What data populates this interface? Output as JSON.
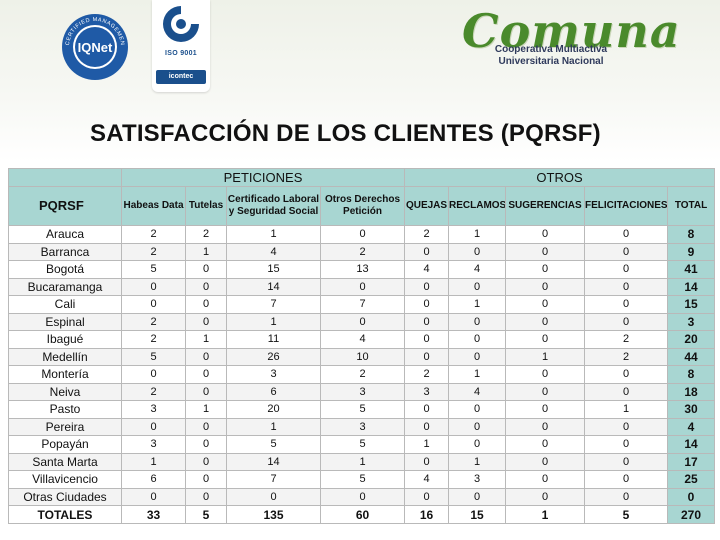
{
  "header": {
    "iqnet_label": "IQNet",
    "iqnet_ring": "CERTIFIED MANAGEMENT SYSTEM",
    "icontec_iso": "ISO 9001",
    "icontec_name": "icontec",
    "brand": "Comuna",
    "brand_sub_1": "Cooperativa Multiactiva",
    "brand_sub_2": "Universitaria Nacional"
  },
  "title": "SATISFACCIÓN DE LOS CLIENTES (PQRSF)",
  "table": {
    "group_peticiones": "PETICIONES",
    "group_otros": "OTROS",
    "columns": [
      "PQRSF",
      "Habeas Data",
      "Tutelas",
      "Certificado Laboral y Seguridad Social",
      "Otros Derechos Petición",
      "QUEJAS",
      "RECLAMOS",
      "SUGERENCIAS",
      "FELICITACIONES",
      "TOTAL"
    ],
    "rows": [
      [
        "Arauca",
        "2",
        "2",
        "1",
        "0",
        "2",
        "1",
        "0",
        "0",
        "8"
      ],
      [
        "Barranca",
        "2",
        "1",
        "4",
        "2",
        "0",
        "0",
        "0",
        "0",
        "9"
      ],
      [
        "Bogotá",
        "5",
        "0",
        "15",
        "13",
        "4",
        "4",
        "0",
        "0",
        "41"
      ],
      [
        "Bucaramanga",
        "0",
        "0",
        "14",
        "0",
        "0",
        "0",
        "0",
        "0",
        "14"
      ],
      [
        "Cali",
        "0",
        "0",
        "7",
        "7",
        "0",
        "1",
        "0",
        "0",
        "15"
      ],
      [
        "Espinal",
        "2",
        "0",
        "1",
        "0",
        "0",
        "0",
        "0",
        "0",
        "3"
      ],
      [
        "Ibagué",
        "2",
        "1",
        "11",
        "4",
        "0",
        "0",
        "0",
        "2",
        "20"
      ],
      [
        "Medellín",
        "5",
        "0",
        "26",
        "10",
        "0",
        "0",
        "1",
        "2",
        "44"
      ],
      [
        "Montería",
        "0",
        "0",
        "3",
        "2",
        "2",
        "1",
        "0",
        "0",
        "8"
      ],
      [
        "Neiva",
        "2",
        "0",
        "6",
        "3",
        "3",
        "4",
        "0",
        "0",
        "18"
      ],
      [
        "Pasto",
        "3",
        "1",
        "20",
        "5",
        "0",
        "0",
        "0",
        "1",
        "30"
      ],
      [
        "Pereira",
        "0",
        "0",
        "1",
        "3",
        "0",
        "0",
        "0",
        "0",
        "4"
      ],
      [
        "Popayán",
        "3",
        "0",
        "5",
        "5",
        "1",
        "0",
        "0",
        "0",
        "14"
      ],
      [
        "Santa Marta",
        "1",
        "0",
        "14",
        "1",
        "0",
        "1",
        "0",
        "0",
        "17"
      ],
      [
        "Villavicencio",
        "6",
        "0",
        "7",
        "5",
        "4",
        "3",
        "0",
        "0",
        "25"
      ],
      [
        "Otras Ciudades",
        "0",
        "0",
        "0",
        "0",
        "0",
        "0",
        "0",
        "0",
        "0"
      ]
    ],
    "totals": [
      "TOTALES",
      "33",
      "5",
      "135",
      "60",
      "16",
      "15",
      "1",
      "5",
      "270"
    ]
  }
}
